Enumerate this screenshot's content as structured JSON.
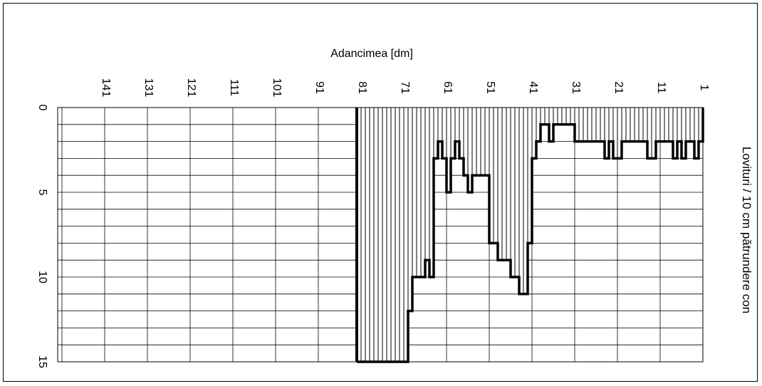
{
  "chart_data": {
    "type": "bar",
    "orientation": "horizontal-depth-reversed",
    "xlabel": "Adancimea  [dm]",
    "ylabel": "Lovituri / 10 cm pătrundere con",
    "x_ticks": [
      141,
      131,
      121,
      111,
      101,
      91,
      81,
      71,
      61,
      51,
      41,
      31,
      21,
      11,
      1
    ],
    "y_ticks": [
      0,
      5,
      10,
      15
    ],
    "xlim": [
      151,
      0
    ],
    "ylim": [
      0,
      15
    ],
    "y_axis_direction": "down",
    "grid": true,
    "x": [
      1,
      2,
      3,
      4,
      5,
      6,
      7,
      8,
      9,
      10,
      11,
      12,
      13,
      14,
      15,
      16,
      17,
      18,
      19,
      20,
      21,
      22,
      23,
      24,
      25,
      26,
      27,
      28,
      29,
      30,
      31,
      32,
      33,
      34,
      35,
      36,
      37,
      38,
      39,
      40,
      41,
      42,
      43,
      44,
      45,
      46,
      47,
      48,
      49,
      50,
      51,
      52,
      53,
      54,
      55,
      56,
      57,
      58,
      59,
      60,
      61,
      62,
      63,
      64,
      65,
      66,
      67,
      68,
      69,
      70,
      71,
      72,
      73,
      74,
      75,
      76,
      77,
      78,
      79,
      80,
      81
    ],
    "values": [
      2,
      3,
      2,
      2,
      3,
      2,
      3,
      2,
      2,
      2,
      2,
      3,
      3,
      2,
      2,
      2,
      2,
      2,
      2,
      3,
      3,
      2,
      3,
      2,
      2,
      2,
      2,
      2,
      2,
      2,
      1,
      1,
      1,
      1,
      1,
      2,
      1,
      1,
      2,
      3,
      8,
      11,
      11,
      10,
      10,
      9,
      9,
      9,
      8,
      8,
      4,
      4,
      4,
      4,
      5,
      4,
      3,
      2,
      3,
      5,
      3,
      2,
      3,
      10,
      9,
      10,
      10,
      10,
      12,
      15,
      15,
      15,
      15,
      15,
      15,
      15,
      15,
      15,
      15,
      15,
      15
    ]
  }
}
